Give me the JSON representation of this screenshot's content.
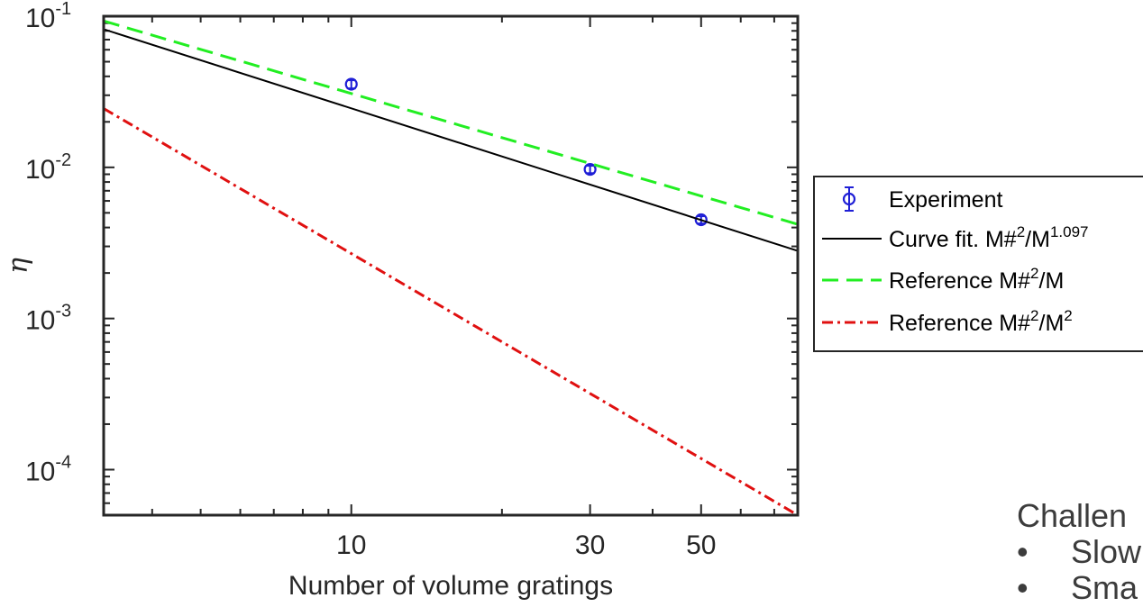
{
  "chart_data": {
    "type": "line",
    "xscale": "log",
    "yscale": "log",
    "xlabel": "Number of volume gratings",
    "ylabel": "η",
    "xlim": [
      3.2,
      78
    ],
    "ylim": [
      5e-05,
      0.1
    ],
    "xticks": [
      {
        "value": 10,
        "label": "10"
      },
      {
        "value": 30,
        "label": "30"
      },
      {
        "value": 50,
        "label": "50"
      }
    ],
    "yticks": [
      {
        "value": 0.1,
        "base": "10",
        "exp": "-1"
      },
      {
        "value": 0.01,
        "base": "10",
        "exp": "-2"
      },
      {
        "value": 0.001,
        "base": "10",
        "exp": "-3"
      },
      {
        "value": 0.0001,
        "base": "10",
        "exp": "-4"
      }
    ],
    "legend_position": "outside-right",
    "series": [
      {
        "name_parts": [
          "Experiment"
        ],
        "style": "errorbar-circle",
        "color": "#1f1fd6",
        "x": [
          10,
          30,
          50
        ],
        "y": [
          0.0355,
          0.0097,
          0.0045
        ],
        "err": [
          0.0022,
          0.00055,
          0.00025
        ]
      },
      {
        "name_parts": [
          "Curve fit. M#",
          "2",
          "/M",
          "1.097"
        ],
        "style": "solid",
        "color": "#000000",
        "x": [
          3.2,
          78
        ],
        "y": [
          0.082,
          0.0028
        ]
      },
      {
        "name_parts": [
          "Reference M#",
          "2",
          "/M"
        ],
        "style": "dashed",
        "color": "#22ee22",
        "x": [
          3.2,
          78
        ],
        "y": [
          0.093,
          0.0042
        ]
      },
      {
        "name_parts": [
          "Reference M#",
          "2",
          "/M",
          "2"
        ],
        "style": "dashdot",
        "color": "#e01010",
        "x": [
          3.2,
          78
        ],
        "y": [
          0.0245,
          5e-05
        ]
      }
    ]
  },
  "side_text": {
    "heading": "Challen",
    "bullet": "•",
    "items": [
      "Slow",
      "Sma"
    ]
  }
}
